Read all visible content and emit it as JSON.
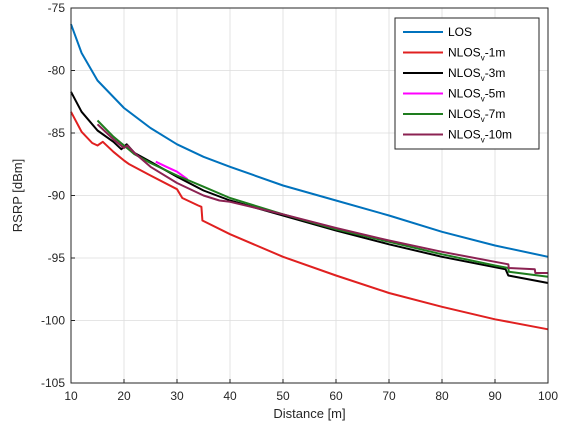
{
  "chart_data": {
    "type": "line",
    "xlabel": "Distance [m]",
    "ylabel": "RSRP [dBm]",
    "xlim": [
      10,
      100
    ],
    "ylim": [
      -105,
      -75
    ],
    "xticks": [
      10,
      20,
      30,
      40,
      50,
      60,
      70,
      80,
      90,
      100
    ],
    "yticks": [
      -75,
      -80,
      -85,
      -90,
      -95,
      -100,
      -105
    ],
    "grid": true,
    "legend_position": "top-right",
    "series": [
      {
        "name": "LOS",
        "color": "#0072BD",
        "points": [
          [
            10,
            -76.3
          ],
          [
            12,
            -78.6
          ],
          [
            15,
            -80.8
          ],
          [
            20,
            -83.0
          ],
          [
            25,
            -84.6
          ],
          [
            30,
            -85.9
          ],
          [
            35,
            -86.9
          ],
          [
            40,
            -87.7
          ],
          [
            50,
            -89.2
          ],
          [
            60,
            -90.4
          ],
          [
            70,
            -91.6
          ],
          [
            80,
            -92.9
          ],
          [
            90,
            -94.0
          ],
          [
            100,
            -94.9
          ]
        ]
      },
      {
        "name": "NLOS_v-1m",
        "label_main": "NLOS",
        "label_sub": "v",
        "label_rest": "-1m",
        "color": "#E02020",
        "points": [
          [
            10,
            -83.3
          ],
          [
            12,
            -84.9
          ],
          [
            14,
            -85.8
          ],
          [
            15,
            -86.0
          ],
          [
            16,
            -85.7
          ],
          [
            18,
            -86.5
          ],
          [
            20,
            -87.2
          ],
          [
            21,
            -87.5
          ],
          [
            25,
            -88.4
          ],
          [
            30,
            -89.5
          ],
          [
            31,
            -90.2
          ],
          [
            34,
            -90.8
          ],
          [
            34.6,
            -90.9
          ],
          [
            34.8,
            -92.0
          ],
          [
            40,
            -93.1
          ],
          [
            50,
            -94.9
          ],
          [
            60,
            -96.4
          ],
          [
            70,
            -97.8
          ],
          [
            80,
            -98.9
          ],
          [
            90,
            -99.9
          ],
          [
            100,
            -100.7
          ]
        ]
      },
      {
        "name": "NLOS_v-3m",
        "label_main": "NLOS",
        "label_sub": "v",
        "label_rest": "-3m",
        "color": "#000000",
        "points": [
          [
            10,
            -81.7
          ],
          [
            12,
            -83.3
          ],
          [
            15,
            -84.8
          ],
          [
            18,
            -85.7
          ],
          [
            19.5,
            -86.3
          ],
          [
            20.5,
            -85.9
          ],
          [
            22,
            -86.6
          ],
          [
            25,
            -87.3
          ],
          [
            30,
            -88.5
          ],
          [
            35,
            -89.6
          ],
          [
            40,
            -90.4
          ],
          [
            50,
            -91.6
          ],
          [
            60,
            -92.8
          ],
          [
            70,
            -93.9
          ],
          [
            80,
            -94.9
          ],
          [
            92,
            -95.9
          ],
          [
            92.5,
            -96.4
          ],
          [
            100,
            -97.0
          ]
        ]
      },
      {
        "name": "NLOS_v-5m",
        "label_main": "NLOS",
        "label_sub": "v",
        "label_rest": "-5m",
        "color": "#FF00FF",
        "points": [
          [
            26,
            -87.3
          ],
          [
            28,
            -87.7
          ],
          [
            30,
            -88.1
          ],
          [
            32,
            -88.7
          ]
        ]
      },
      {
        "name": "NLOS_v-7m",
        "label_main": "NLOS",
        "label_sub": "v",
        "label_rest": "-7m",
        "color": "#1E7D1E",
        "points": [
          [
            15,
            -84.0
          ],
          [
            18,
            -85.3
          ],
          [
            20,
            -86.0
          ],
          [
            22,
            -86.7
          ],
          [
            25,
            -87.4
          ],
          [
            30,
            -88.4
          ],
          [
            35,
            -89.3
          ],
          [
            40,
            -90.2
          ],
          [
            50,
            -91.5
          ],
          [
            60,
            -92.7
          ],
          [
            70,
            -93.7
          ],
          [
            80,
            -94.7
          ],
          [
            90,
            -95.6
          ],
          [
            92.5,
            -95.8
          ],
          [
            92.6,
            -96.1
          ],
          [
            100,
            -96.5
          ]
        ]
      },
      {
        "name": "NLOS_v-10m",
        "label_main": "NLOS",
        "label_sub": "v",
        "label_rest": "-10m",
        "color": "#8B2252",
        "points": [
          [
            15,
            -84.3
          ],
          [
            18,
            -85.5
          ],
          [
            20,
            -86.2
          ],
          [
            20.6,
            -86.0
          ],
          [
            22,
            -86.6
          ],
          [
            25,
            -87.7
          ],
          [
            30,
            -89.0
          ],
          [
            35,
            -90.0
          ],
          [
            38,
            -90.4
          ],
          [
            40,
            -90.5
          ],
          [
            50,
            -91.5
          ],
          [
            60,
            -92.6
          ],
          [
            70,
            -93.6
          ],
          [
            80,
            -94.5
          ],
          [
            90,
            -95.3
          ],
          [
            92.5,
            -95.5
          ],
          [
            92.6,
            -95.8
          ],
          [
            97.5,
            -95.9
          ],
          [
            97.6,
            -96.2
          ],
          [
            100,
            -96.2
          ]
        ]
      }
    ]
  }
}
